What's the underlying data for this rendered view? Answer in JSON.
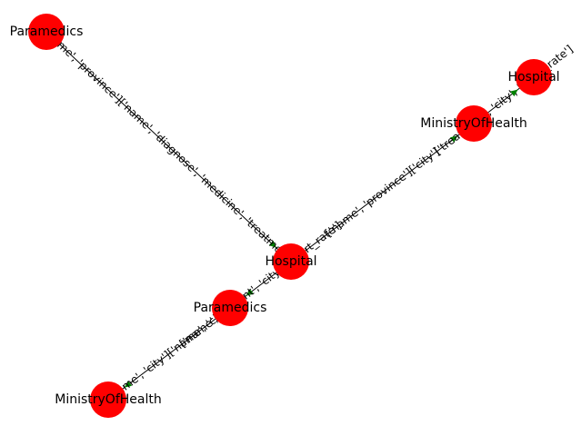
{
  "graph": {
    "node_color": "#ff0000",
    "edge_color": "#000000",
    "arrow_color": "#008000",
    "nodes": [
      {
        "id": "paramedics_top",
        "label": "Paramedics"
      },
      {
        "id": "hospital_top",
        "label": "Hospital"
      },
      {
        "id": "ministry_top",
        "label": "MinistryOfHealth"
      },
      {
        "id": "hospital_center",
        "label": "Hospital"
      },
      {
        "id": "paramedics_mid",
        "label": "Paramedics"
      },
      {
        "id": "ministry_bottom",
        "label": "MinistryOfHealth"
      }
    ],
    "edges": [
      {
        "id": "e1",
        "source": "paramedics_top",
        "target": "hospital_center",
        "label": "['name', 'province']['name', 'diagnose', 'medicine', 'treatment']"
      },
      {
        "id": "e2",
        "source": "hospital_center",
        "target": "ministry_top",
        "label": "['name', 'province']['city']"
      },
      {
        "id": "e3",
        "source": "ministry_top",
        "target": "hospital_top",
        "label": "['treatment', 'city', 'heart_rate']"
      },
      {
        "id": "e4",
        "source": "hospital_center",
        "target": "paramedics_mid",
        "label": "['name', 'patient', 'city', 'heart_rate']"
      },
      {
        "id": "e5",
        "source": "paramedics_mid",
        "target": "ministry_bottom",
        "label": "['name', 'city']['name', 'city']"
      }
    ]
  }
}
